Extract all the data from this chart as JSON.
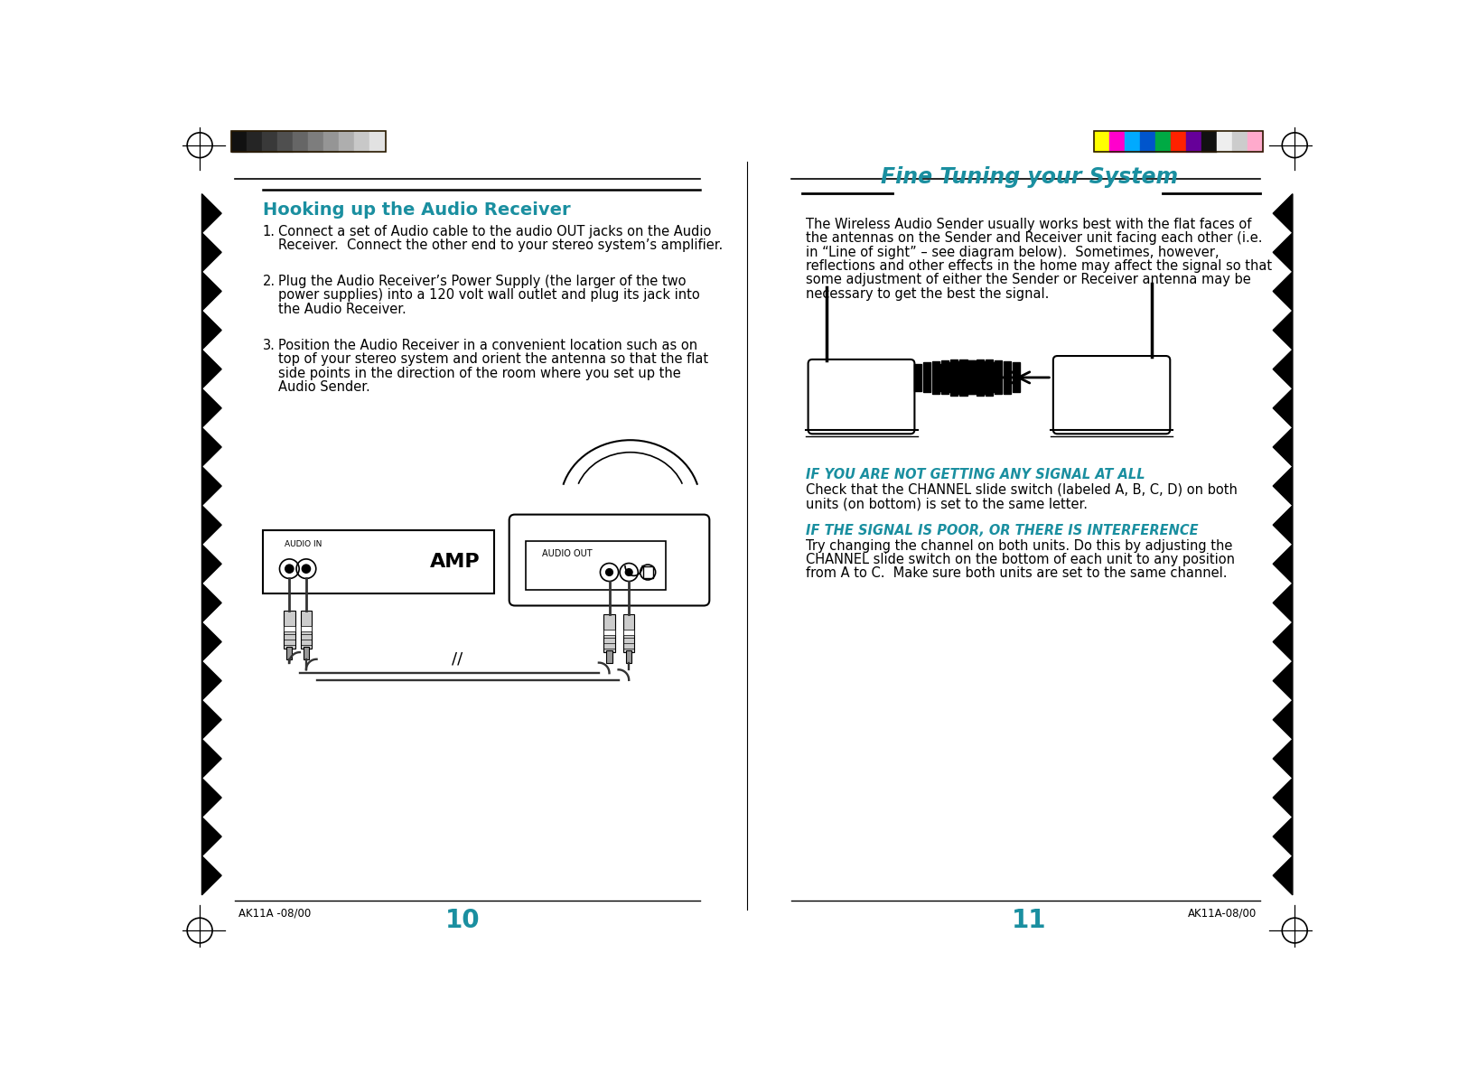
{
  "bg_color": "#ffffff",
  "teal_color": "#1a8fa0",
  "black_color": "#000000",
  "left_heading": "Hooking up the Audio Receiver",
  "left_heading_color": "#1a8fa0",
  "right_heading": "Fine Tuning your System",
  "signal_heading": "If you are not getting any signal at all",
  "poor_heading": "If the signal is poor, or there is interference",
  "page_left": "10",
  "page_right": "11",
  "footer_left": "AK11A -08/00",
  "footer_right": "AK11A-08/00",
  "grayscale_colors": [
    "#111111",
    "#252525",
    "#393939",
    "#4f4f4f",
    "#666666",
    "#7d7d7d",
    "#959595",
    "#aeaeae",
    "#c8c8c8",
    "#e2e2e2"
  ],
  "color_bars": [
    "#ffff00",
    "#ff00cc",
    "#00aaff",
    "#0055cc",
    "#00aa44",
    "#ff2200",
    "#660099",
    "#111111",
    "#eeeeee",
    "#cccccc",
    "#ffaacc"
  ]
}
